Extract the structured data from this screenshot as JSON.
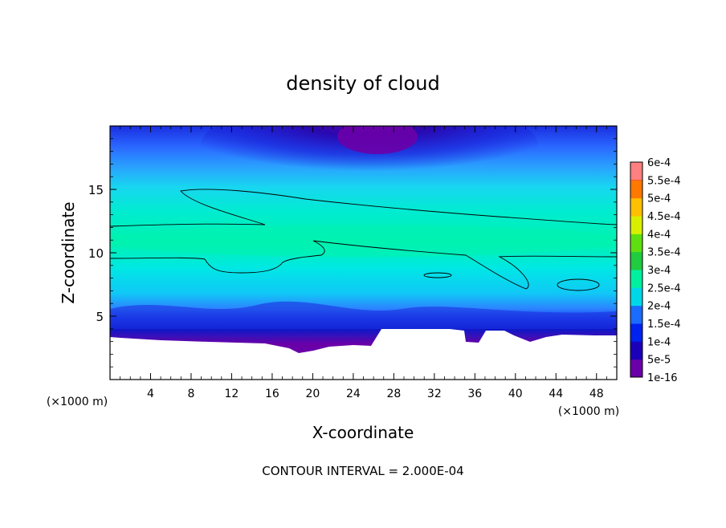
{
  "chart_data": {
    "type": "contour",
    "title": "density of cloud",
    "xlabel": "X-coordinate",
    "ylabel": "Z-coordinate",
    "x_unit": "(×1000 m)",
    "x_unit_right": "(×1000 m)",
    "footnote": "CONTOUR INTERVAL = 2.000E-04",
    "xlim": [
      0,
      50
    ],
    "ylim": [
      0,
      20
    ],
    "x_ticks": [
      4,
      8,
      12,
      16,
      20,
      24,
      28,
      32,
      36,
      40,
      44,
      48
    ],
    "x_tick_labels": [
      "4",
      "8",
      "12",
      "16",
      "20",
      "24",
      "28",
      "32",
      "36",
      "40",
      "44",
      "48"
    ],
    "y_ticks": [
      5,
      10,
      15
    ],
    "y_tick_labels": [
      "5",
      "10",
      "15"
    ],
    "colorbar": {
      "labels": [
        "1e-16",
        "5e-5",
        "1e-4",
        "1.5e-4",
        "2e-4",
        "2.5e-4",
        "3e-4",
        "3.5e-4",
        "4e-4",
        "4.5e-4",
        "5e-4",
        "5.5e-4",
        "6e-4"
      ],
      "colors": [
        "#6a00a8",
        "#1a00b8",
        "#0022ee",
        "#1b6bff",
        "#00d8e8",
        "#00f0a0",
        "#20cc40",
        "#5ee010",
        "#d8f000",
        "#ffc000",
        "#ff7800",
        "#ff2a00",
        "#ff8080"
      ]
    },
    "field": {
      "approximate_values_by_height": [
        {
          "z": 19,
          "value": 1e-16,
          "note": "core near x=25"
        },
        {
          "z": 17,
          "value": 0.00015
        },
        {
          "z": 14,
          "value": 0.0002
        },
        {
          "z": 11,
          "value": 0.00022
        },
        {
          "z": 8,
          "value": 0.00018
        },
        {
          "z": 5,
          "value": 0.0001
        },
        {
          "z": 4,
          "value": 5e-05
        }
      ]
    }
  }
}
